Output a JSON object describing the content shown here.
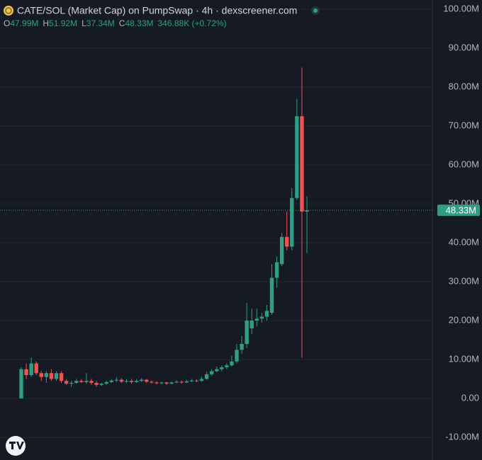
{
  "chart_data": {
    "type": "candlestick",
    "title": "CATE/SOL (Market Cap) on PumpSwap · 4h · dexscreener.com",
    "ohlc_legend": [
      {
        "key": "O",
        "value": "47.99M"
      },
      {
        "key": "H",
        "value": "51.92M"
      },
      {
        "key": "L",
        "value": "37.34M"
      },
      {
        "key": "C",
        "value": "48.33M"
      }
    ],
    "change": "346.88K (+0.72%)",
    "up_color": "#2f9e84",
    "down_color": "#ef5350",
    "grid": true,
    "ylim": [
      -10,
      100
    ],
    "yticks": [
      {
        "value": 100,
        "label": "100.00M"
      },
      {
        "value": 90,
        "label": "90.00M"
      },
      {
        "value": 80,
        "label": "80.00M"
      },
      {
        "value": 70,
        "label": "70.00M"
      },
      {
        "value": 60,
        "label": "60.00M"
      },
      {
        "value": 50,
        "label": "50.00M"
      },
      {
        "value": 40,
        "label": "40.00M"
      },
      {
        "value": 30,
        "label": "30.00M"
      },
      {
        "value": 20,
        "label": "20.00M"
      },
      {
        "value": 10,
        "label": "10.00M"
      },
      {
        "value": 0,
        "label": "0.00"
      },
      {
        "value": -10,
        "label": "-10.00M"
      }
    ],
    "last_price": {
      "value": 48.33,
      "label": "48.33M"
    },
    "open": [
      0,
      7.5,
      6,
      9,
      6.5,
      5.5,
      6.5,
      5,
      6.5,
      4.5,
      3.8,
      4,
      4.5,
      4.2,
      4.5,
      4,
      3.5,
      3.8,
      4.2,
      4.6,
      4.8,
      4.3,
      4.5,
      4.2,
      4.5,
      4.8,
      4.3,
      4.1,
      3.9,
      4.1,
      3.8,
      4.1,
      4.3,
      4.1,
      4.4,
      4.6,
      4.5,
      5,
      6.2,
      7,
      7.5,
      8,
      8.5,
      9.5,
      12.5,
      14,
      18,
      20,
      20.5,
      21,
      22,
      31,
      34.5,
      41.5,
      39,
      51.5,
      72.5,
      47.99
    ],
    "high": [
      8,
      9,
      10.5,
      9.5,
      7,
      7,
      7.5,
      7,
      7,
      5,
      4.5,
      5,
      5,
      6.5,
      5,
      4.5,
      4,
      4.5,
      5,
      5.5,
      5.2,
      5,
      5,
      5,
      5.2,
      5,
      4.6,
      4.4,
      4.3,
      4.3,
      4.4,
      4.7,
      4.6,
      4.8,
      5,
      4.9,
      5.6,
      6.8,
      7.5,
      8.2,
      8.5,
      9,
      11,
      14,
      16,
      24.5,
      23,
      23,
      22,
      24,
      34.5,
      36.5,
      42.5,
      48,
      54,
      77,
      85,
      51.92
    ],
    "low": [
      0,
      5,
      5.5,
      6,
      4.5,
      4,
      4.5,
      4.5,
      4,
      3.5,
      3,
      3.8,
      4,
      3.8,
      3.5,
      3,
      3.2,
      3.5,
      4,
      4.2,
      4,
      4,
      3.8,
      4,
      4.3,
      4,
      3.8,
      3.6,
      3.6,
      3.5,
      3.6,
      3.9,
      3.8,
      3.9,
      4.2,
      4.2,
      4.3,
      4.8,
      5.8,
      6.8,
      7,
      7.5,
      8.2,
      9,
      11.5,
      13,
      16.5,
      18.5,
      19.5,
      20,
      21.5,
      28.5,
      34,
      38,
      38,
      51,
      10.5,
      37.34
    ],
    "close": [
      7.5,
      6,
      9,
      6.5,
      5.5,
      6.5,
      5,
      6.5,
      4.5,
      3.8,
      4,
      4.5,
      4.2,
      4.5,
      4,
      3.5,
      3.8,
      4.2,
      4.6,
      4.8,
      4.3,
      4.5,
      4.2,
      4.5,
      4.8,
      4.3,
      4.1,
      3.9,
      4.1,
      3.8,
      4.1,
      4.3,
      4.1,
      4.4,
      4.6,
      4.5,
      5,
      6.2,
      7,
      7.5,
      8,
      8.5,
      9.5,
      12.5,
      14,
      20,
      20,
      20.5,
      21,
      22.5,
      31,
      35,
      41.5,
      39,
      51.5,
      72.5,
      48,
      48.33
    ]
  }
}
